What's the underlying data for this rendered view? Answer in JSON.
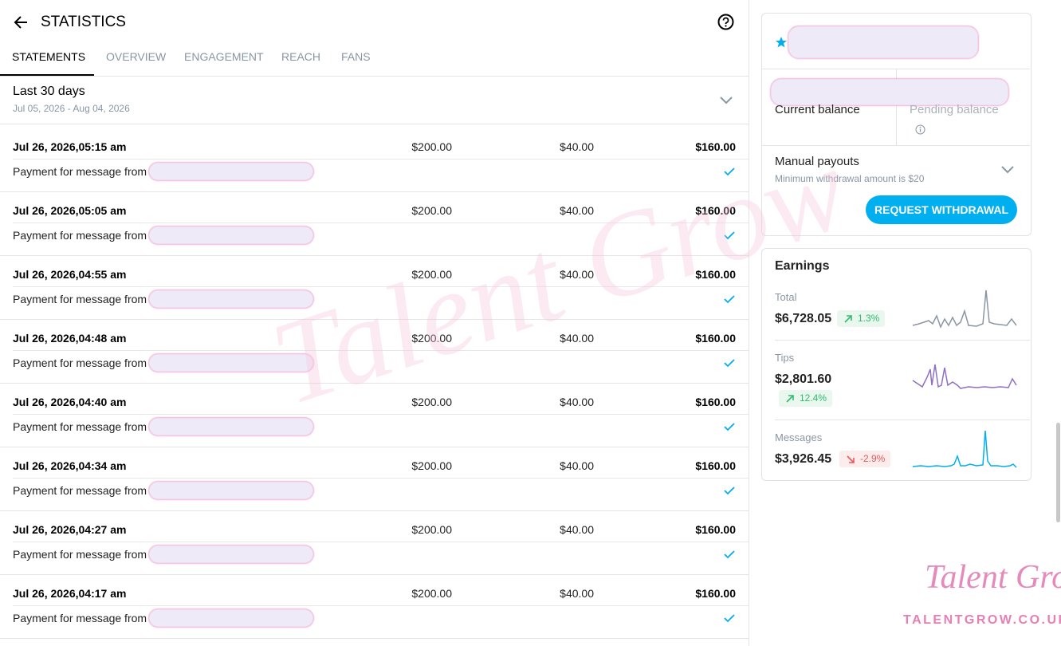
{
  "header": {
    "title": "STATISTICS"
  },
  "tabs": [
    "STATEMENTS",
    "OVERVIEW",
    "ENGAGEMENT",
    "REACH",
    "FANS"
  ],
  "period": {
    "label": "Last 30 days",
    "range": "Jul 05, 2026 - Aug 04, 2026"
  },
  "transactions": [
    {
      "date": "Jul 26, 2026,05:15 am",
      "gross": "$200.00",
      "fee": "$40.00",
      "net": "$160.00",
      "description": "Payment for message from"
    },
    {
      "date": "Jul 26, 2026,05:05 am",
      "gross": "$200.00",
      "fee": "$40.00",
      "net": "$160.00",
      "description": "Payment for message from"
    },
    {
      "date": "Jul 26, 2026,04:55 am",
      "gross": "$200.00",
      "fee": "$40.00",
      "net": "$160.00",
      "description": "Payment for message from"
    },
    {
      "date": "Jul 26, 2026,04:48 am",
      "gross": "$200.00",
      "fee": "$40.00",
      "net": "$160.00",
      "description": "Payment for message from"
    },
    {
      "date": "Jul 26, 2026,04:40 am",
      "gross": "$200.00",
      "fee": "$40.00",
      "net": "$160.00",
      "description": "Payment for message from"
    },
    {
      "date": "Jul 26, 2026,04:34 am",
      "gross": "$200.00",
      "fee": "$40.00",
      "net": "$160.00",
      "description": "Payment for message from"
    },
    {
      "date": "Jul 26, 2026,04:27 am",
      "gross": "$200.00",
      "fee": "$40.00",
      "net": "$160.00",
      "description": "Payment for message from"
    },
    {
      "date": "Jul 26, 2026,04:17 am",
      "gross": "$200.00",
      "fee": "$40.00",
      "net": "$160.00",
      "description": "Payment for message from"
    }
  ],
  "balance": {
    "current": "Current balance",
    "pending": "Pending balance",
    "payouts_title": "Manual payouts",
    "payouts_note": "Minimum withdrawal amount is $20",
    "button": "REQUEST WITHDRAWAL"
  },
  "earnings": {
    "title": "Earnings",
    "items": [
      {
        "label": "Total",
        "amount": "$6,728.05",
        "change": "1.3%"
      },
      {
        "label": "Tips",
        "amount": "$2,801.60",
        "change": "12.4%"
      },
      {
        "label": "Messages",
        "amount": "$3,926.45",
        "change": "-2.9%"
      }
    ]
  },
  "watermark": {
    "script": "Talent Grow",
    "site": "TALENTGROW.CO.UK"
  }
}
